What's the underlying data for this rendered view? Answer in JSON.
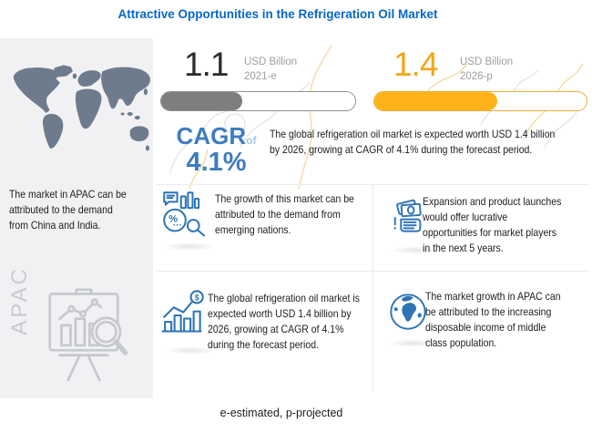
{
  "title": "Attractive Opportunities in the Refrigeration Oil Market",
  "footer": "e-estimated, p-projected",
  "colors": {
    "title_blue": "#0667C4",
    "cagr_blue": "#3E7CBE",
    "icon_blue": "#2E75B6",
    "amber": "#FEB319",
    "amber_text": "#F2A716",
    "dark_bar": "#7E7E7E",
    "map_slate": "#6E7B8D",
    "panel_bg": "#f1f1f3",
    "muted_gray": "#9d9d9d"
  },
  "left_panel": {
    "map_icon": "world-map-icon",
    "text": "The market in APAC can be\nattributed to the demand\nfrom China and India.",
    "region_label": "APAC",
    "easel_icon": "chart-easel-magnifier-icon"
  },
  "stats": [
    {
      "value": "1.1",
      "unit": "USD Billion",
      "period": "2021-e"
    },
    {
      "value": "1.4",
      "unit": "USD Billion",
      "period": "2026-p"
    }
  ],
  "cagr": {
    "label": "CAGR",
    "of_word": "of",
    "value": "4.1%"
  },
  "summary": "The global refrigeration oil market is expected worth USD 1.4 billion\nby 2026, growing at CAGR of 4.1% during the forecast period.",
  "quadrants": [
    {
      "icon": "market-analysis-icon",
      "text": "The growth of this market can be\nattributed to the demand from\nemerging nations."
    },
    {
      "icon": "cash-hand-icon",
      "text": "Expansion and product launches\nwould offer lucrative\nopportunities for market players\nin the next 5 years."
    },
    {
      "icon": "growth-chart-dollar-icon",
      "text": "The global refrigeration oil market is\nexpected worth USD 1.4 billion by\n2026, growing at CAGR of 4.1%\nduring the forecast period."
    },
    {
      "icon": "globe-icon",
      "text": "The market growth in APAC can\nbe attributed to the increasing\ndisposable income of middle\nclass population."
    }
  ],
  "glyphs": {
    "percent": "%",
    "dollar": "$"
  },
  "chart_data": {
    "type": "bar",
    "categories": [
      "2021-e",
      "2026-p"
    ],
    "values": [
      1.1,
      1.4
    ],
    "unit": "USD Billion",
    "title": "Attractive Opportunities in the Refrigeration Oil Market",
    "annotations": [
      "CAGR of 4.1%",
      "e-estimated, p-projected"
    ],
    "bar_colors": [
      "#7E7E7E",
      "#FEB319"
    ],
    "bar_fill_percent": [
      42,
      58
    ],
    "legend": false,
    "grid": false
  }
}
